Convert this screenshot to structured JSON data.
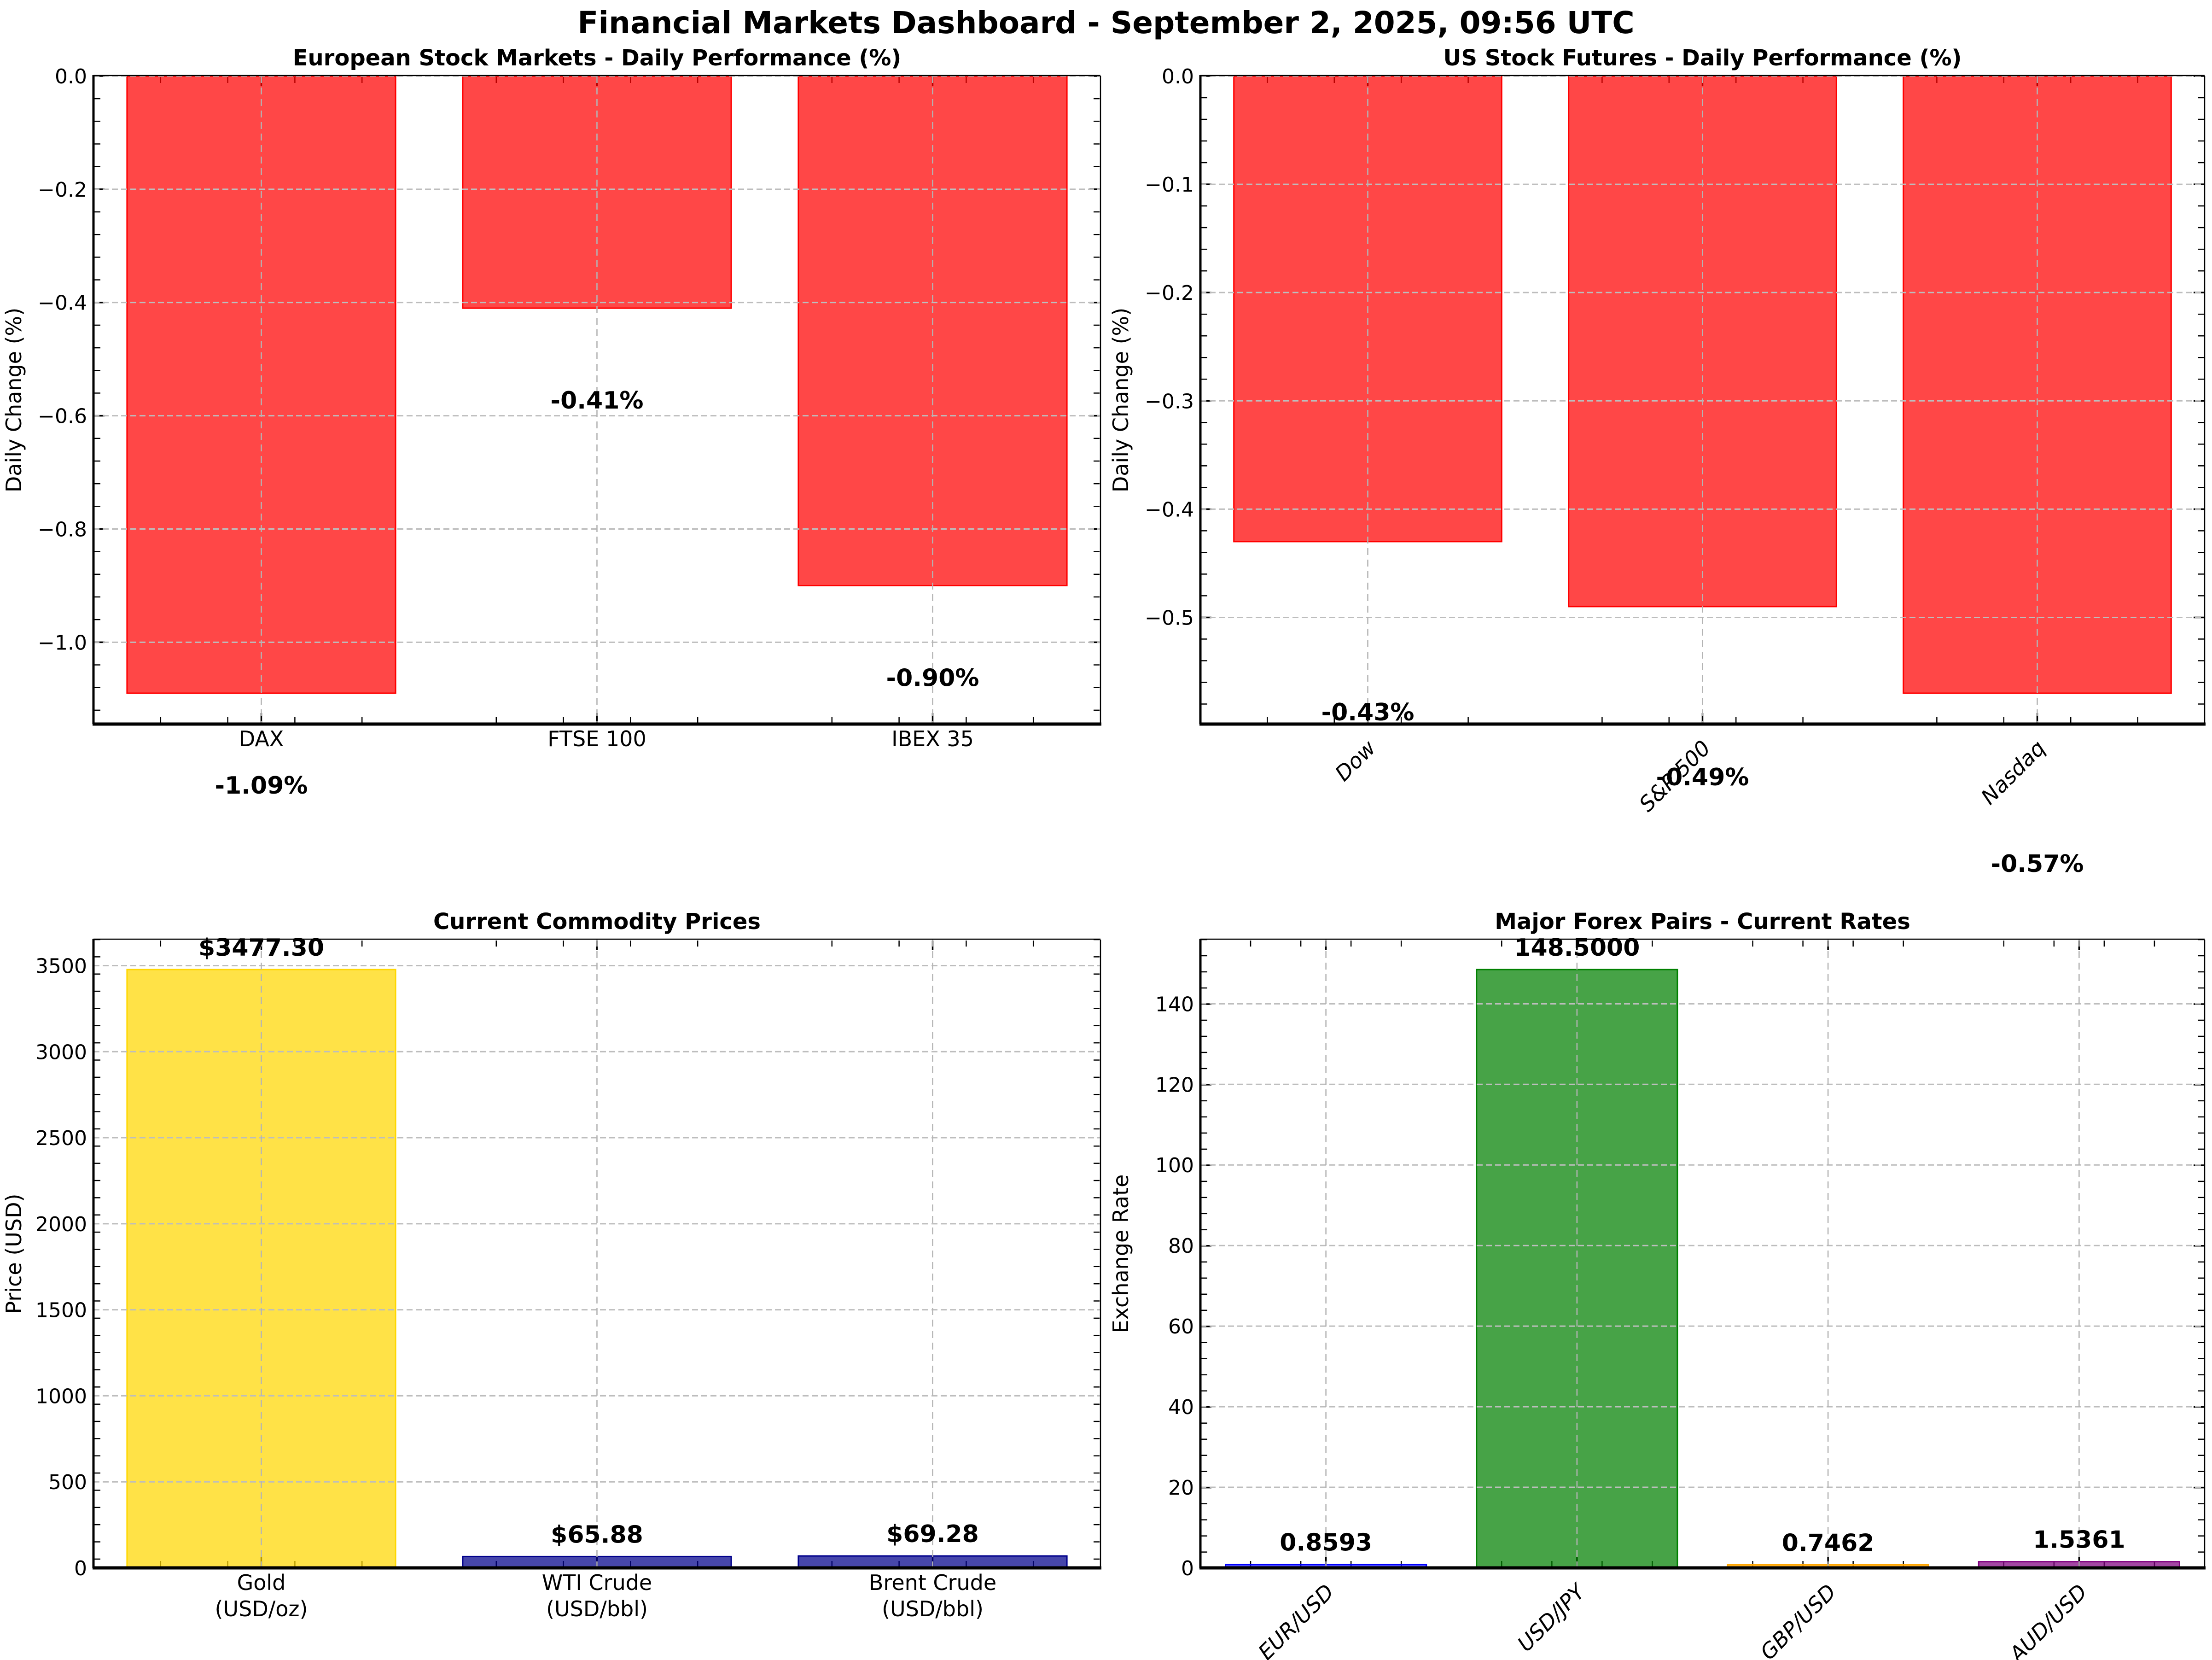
{
  "page": {
    "title": "Financial Markets Dashboard - September 2, 2025, 09:56 UTC"
  },
  "chart_data": [
    {
      "type": "bar",
      "title": "European Stock Markets - Daily Performance (%)",
      "ylabel": "Daily Change (%)",
      "categories": [
        "DAX",
        "FTSE 100",
        "IBEX 35"
      ],
      "values": [
        -1.09,
        -0.41,
        -0.9
      ],
      "value_labels": [
        "-1.09%",
        "-0.41%",
        "-0.90%"
      ],
      "bar_colors": [
        "#FF0000",
        "#FF0000",
        "#FF0000"
      ],
      "ylim": [
        -1.1445,
        0
      ],
      "y_ticks": [
        0,
        -0.2,
        -0.4,
        -0.6,
        -0.8,
        -1.0
      ],
      "y_tick_labels": [
        "0.0",
        "−0.2",
        "−0.4",
        "−0.6",
        "−0.8",
        "−1.0"
      ],
      "grid": true,
      "legend": "none"
    },
    {
      "type": "bar",
      "title": "US Stock Futures - Daily Performance (%)",
      "ylabel": "Daily Change (%)",
      "categories": [
        "Dow",
        "S&P 500",
        "Nasdaq"
      ],
      "values": [
        -0.43,
        -0.49,
        -0.57
      ],
      "value_labels": [
        "-0.43%",
        "-0.49%",
        "-0.57%"
      ],
      "bar_colors": [
        "#FF0000",
        "#FF0000",
        "#FF0000"
      ],
      "ylim": [
        -0.5985,
        0
      ],
      "y_ticks": [
        0,
        -0.1,
        -0.2,
        -0.3,
        -0.4,
        -0.5
      ],
      "y_tick_labels": [
        "0.0",
        "−0.1",
        "−0.2",
        "−0.3",
        "−0.4",
        "−0.5"
      ],
      "grid": true,
      "legend": "none"
    },
    {
      "type": "bar",
      "title": "Current Commodity Prices",
      "ylabel": "Price (USD)",
      "categories": [
        "Gold\n(USD/oz)",
        "WTI Crude\n(USD/bbl)",
        "Brent Crude\n(USD/bbl)"
      ],
      "values": [
        3477.3,
        65.88,
        69.28
      ],
      "value_labels": [
        "$3477.30",
        "$65.88",
        "$69.28"
      ],
      "bar_colors": [
        "#FFD700",
        "#00008B",
        "#00008B"
      ],
      "ylim": [
        0,
        3651.2
      ],
      "y_ticks": [
        0,
        500,
        1000,
        1500,
        2000,
        2500,
        3000,
        3500
      ],
      "y_tick_labels": [
        "0",
        "500",
        "1000",
        "1500",
        "2000",
        "2500",
        "3000",
        "3500"
      ],
      "grid": true,
      "legend": "none"
    },
    {
      "type": "bar",
      "title": "Major Forex Pairs - Current Rates",
      "ylabel": "Exchange Rate",
      "categories": [
        "EUR/USD",
        "USD/JPY",
        "GBP/USD",
        "AUD/USD"
      ],
      "values": [
        0.8593,
        148.5,
        0.7462,
        1.5361
      ],
      "value_labels": [
        "0.8593",
        "148.5000",
        "0.7462",
        "1.5361"
      ],
      "bar_colors": [
        "#0000FF",
        "#008000",
        "#FFA500",
        "#800080"
      ],
      "ylim": [
        0,
        155.93
      ],
      "y_ticks": [
        0,
        20,
        40,
        60,
        80,
        100,
        120,
        140
      ],
      "y_tick_labels": [
        "0",
        "20",
        "40",
        "60",
        "80",
        "100",
        "120",
        "140"
      ],
      "grid": true,
      "legend": "none"
    }
  ]
}
